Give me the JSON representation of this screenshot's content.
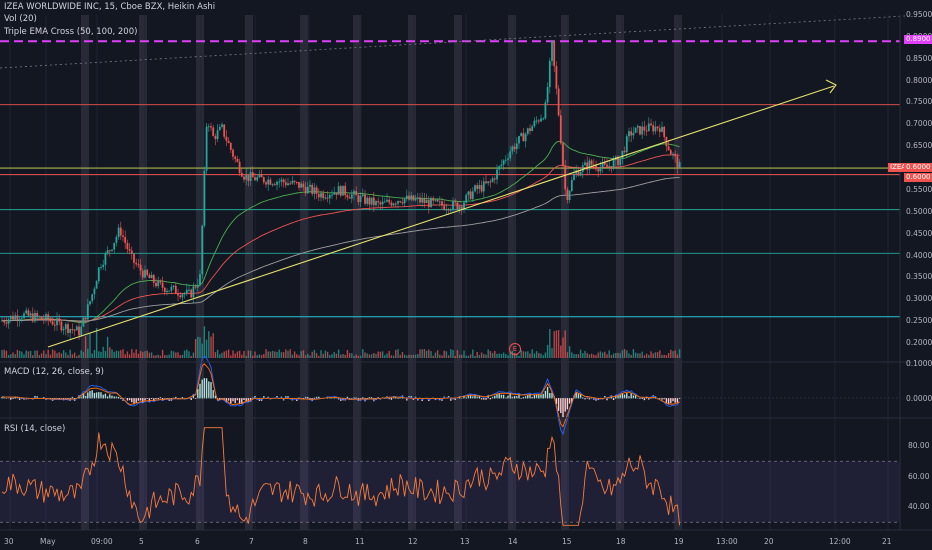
{
  "header": {
    "symbol": "IZEA WORLDWIDE INC, 15, Cboe BZX, Heikin Ashi",
    "volume": "Vol (20)",
    "ema": "Triple EMA Cross (50, 100, 200)",
    "macd": "MACD (12, 26, close, 9)",
    "rsi": "RSI (14, close)"
  },
  "price_scale": [
    "0.9500",
    "0.9000",
    "0.8500",
    "0.8000",
    "0.7500",
    "0.7000",
    "0.6500",
    "0.6000",
    "0.5500",
    "0.5000",
    "0.4500",
    "0.4000",
    "0.3500",
    "0.3000",
    "0.2500",
    "0.2000"
  ],
  "price_badges": {
    "symbol": "IZEA",
    "last": "0.6000",
    "mid": "0.6000",
    "level": "0.8900"
  },
  "macd_scale": [
    "0.1000",
    "0.0000"
  ],
  "rsi_scale": [
    "80.00",
    "60.00",
    "40.00"
  ],
  "x_labels": [
    "30",
    "May",
    "09:00",
    "5",
    "6",
    "7",
    "8",
    "11",
    "12",
    "13",
    "14",
    "15",
    "18",
    "19",
    "13:00",
    "20",
    "12:00",
    "21"
  ],
  "earnings_marker": "E",
  "colors": {
    "up": "#26a69a",
    "down": "#ef5350",
    "magenta": "#e040fb",
    "trend": "#e7e26e",
    "rsi": "#f57c3f",
    "rsi_band": "#7e57c2"
  },
  "chart_data": {
    "type": "candlestick",
    "title": "IZEA WORLDWIDE INC, 15, Cboe BZX, Heikin Ashi",
    "ylim": [
      0.175,
      0.96
    ],
    "horizontal_levels": [
      0.89,
      0.745,
      0.6,
      0.585,
      0.505,
      0.405,
      0.26
    ],
    "rsi_levels": [
      70,
      30
    ],
    "rsi_ylim": [
      25,
      95
    ]
  }
}
